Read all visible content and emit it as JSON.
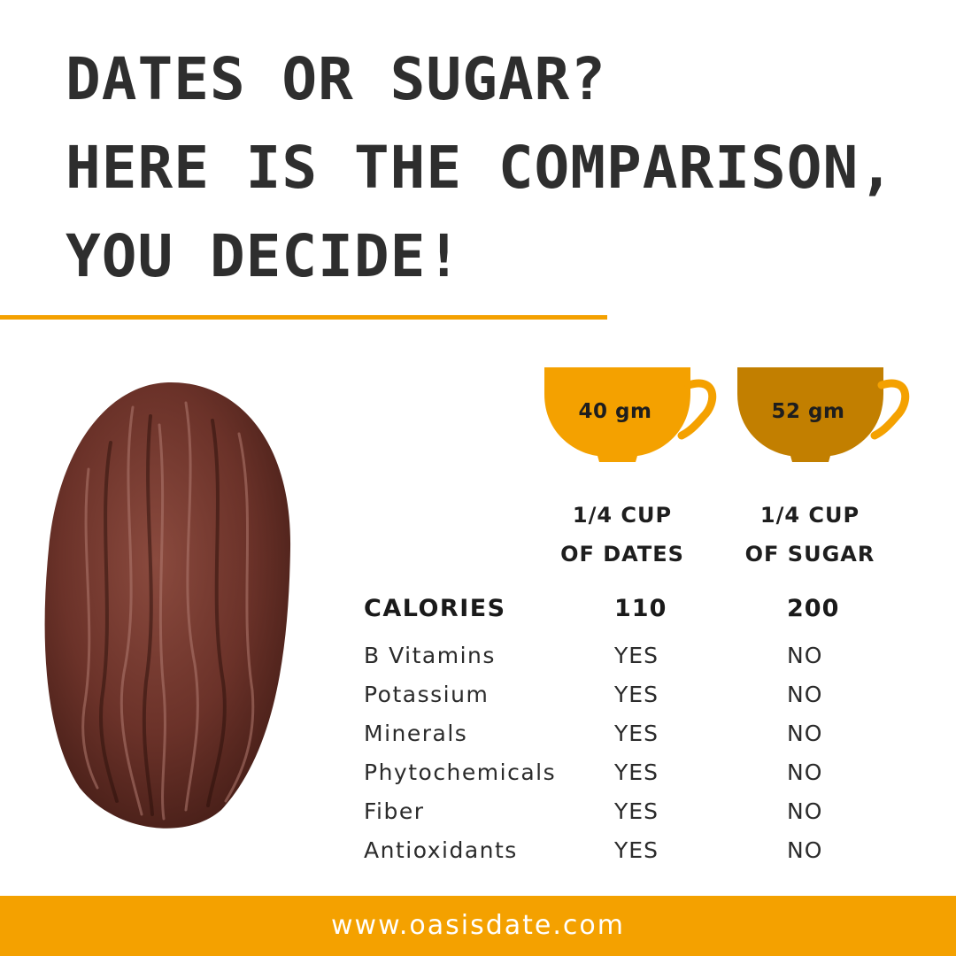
{
  "title": {
    "line1": "DATES OR SUGAR?",
    "line2": "HERE IS THE COMPARISON,",
    "line3": "YOU DECIDE!"
  },
  "colors": {
    "accent": "#f4a100",
    "cup_dates": "#f4a100",
    "cup_sugar": "#c27f00",
    "text": "#2b2b2b"
  },
  "cups": {
    "dates": {
      "amount": "40 gm",
      "line1": "1/4 CUP",
      "line2": "OF DATES"
    },
    "sugar": {
      "amount": "52 gm",
      "line1": "1/4 CUP",
      "line2": "OF SUGAR"
    }
  },
  "table": {
    "header": {
      "label": "CALORIES",
      "dates": "110",
      "sugar": "200"
    },
    "rows": [
      {
        "label": "B Vitamins",
        "dates": "YES",
        "sugar": "NO"
      },
      {
        "label": "Potassium",
        "dates": "YES",
        "sugar": "NO"
      },
      {
        "label": "Minerals",
        "dates": "YES",
        "sugar": "NO"
      },
      {
        "label": "Phytochemicals",
        "dates": "YES",
        "sugar": "NO"
      },
      {
        "label": "Fiber",
        "dates": "YES",
        "sugar": "NO"
      },
      {
        "label": "Antioxidants",
        "dates": "YES",
        "sugar": "NO"
      }
    ]
  },
  "footer": {
    "url": "www.oasisdate.com"
  },
  "images": {
    "date_fruit": "date-fruit-photo"
  }
}
